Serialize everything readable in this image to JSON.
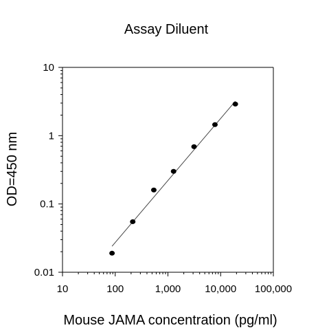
{
  "chart_data": {
    "type": "scatter",
    "title": "Assay Diluent",
    "xlabel": "Mouse JAMA concentration (pg/ml)",
    "ylabel": "OD=450 nm",
    "x_scale": "log",
    "y_scale": "log",
    "xlim": [
      10,
      100000
    ],
    "ylim": [
      0.01,
      10
    ],
    "x_ticks": [
      10,
      100,
      1000,
      10000,
      100000
    ],
    "x_tick_labels": [
      "10",
      "100",
      "1,000",
      "10,000",
      "100,000"
    ],
    "y_ticks": [
      0.01,
      0.1,
      1,
      10
    ],
    "y_tick_labels": [
      "0.01",
      "0.1",
      "1",
      "10"
    ],
    "grid": false,
    "legend": "none",
    "series": [
      {
        "x": [
          87,
          215,
          540,
          1280,
          3130,
          7800,
          19000
        ],
        "y": [
          0.019,
          0.055,
          0.16,
          0.3,
          0.69,
          1.45,
          2.9
        ]
      }
    ],
    "fit_line": {
      "x": [
        87,
        19000
      ],
      "y": [
        0.024,
        3.2
      ]
    },
    "colors": {
      "points": "#000000",
      "line": "#444444",
      "axes": "#000000"
    }
  }
}
